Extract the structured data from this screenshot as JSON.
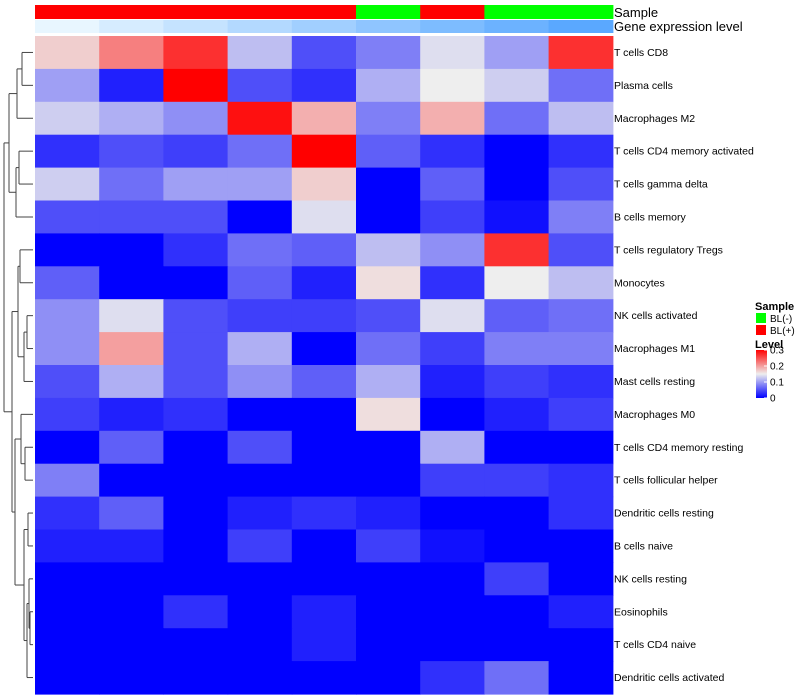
{
  "chart_data": {
    "type": "heatmap",
    "annotations": [
      {
        "name": "Sample",
        "values": [
          "BL(+)",
          "BL(+)",
          "BL(+)",
          "BL(+)",
          "BL(+)",
          "BL(-)",
          "BL(+)",
          "BL(-)",
          "BL(-)"
        ]
      },
      {
        "name": "Gene expression level",
        "values": [
          0.13,
          0.15,
          0.17,
          0.19,
          0.21,
          0.23,
          0.25,
          0.27,
          0.29
        ]
      }
    ],
    "rows": [
      "T cells CD8",
      "Plasma cells",
      "Macrophages M2",
      "T cells CD4 memory activated",
      "T cells gamma delta",
      "B cells memory",
      "T cells regulatory  Tregs",
      "Monocytes",
      "NK cells activated",
      "Macrophages M1",
      "Mast cells resting",
      "Macrophages M0",
      "T cells CD4 memory resting",
      "T cells follicular helper",
      "Dendritic cells resting",
      "B cells naive",
      "NK cells resting",
      "Eosinophils",
      "T cells CD4 naive",
      "Dendritic cells activated"
    ],
    "values": [
      [
        0.17,
        0.22,
        0.27,
        0.12,
        0.05,
        0.08,
        0.14,
        0.1,
        0.27
      ],
      [
        0.1,
        0.02,
        0.3,
        0.05,
        0.03,
        0.11,
        0.15,
        0.13,
        0.07
      ],
      [
        0.13,
        0.11,
        0.09,
        0.29,
        0.19,
        0.08,
        0.19,
        0.07,
        0.12
      ],
      [
        0.03,
        0.05,
        0.04,
        0.07,
        0.3,
        0.06,
        0.03,
        0.0,
        0.03
      ],
      [
        0.13,
        0.07,
        0.1,
        0.1,
        0.17,
        0.0,
        0.06,
        0.0,
        0.05
      ],
      [
        0.05,
        0.05,
        0.05,
        0.0,
        0.14,
        0.0,
        0.04,
        0.01,
        0.08
      ],
      [
        0.0,
        0.0,
        0.03,
        0.07,
        0.06,
        0.12,
        0.09,
        0.27,
        0.05
      ],
      [
        0.06,
        0.0,
        0.0,
        0.06,
        0.02,
        0.16,
        0.03,
        0.15,
        0.12
      ],
      [
        0.09,
        0.14,
        0.05,
        0.04,
        0.04,
        0.05,
        0.14,
        0.06,
        0.07
      ],
      [
        0.09,
        0.2,
        0.05,
        0.11,
        0.0,
        0.07,
        0.04,
        0.08,
        0.08
      ],
      [
        0.05,
        0.11,
        0.05,
        0.09,
        0.06,
        0.11,
        0.02,
        0.04,
        0.03
      ],
      [
        0.04,
        0.02,
        0.03,
        0.0,
        0.0,
        0.16,
        0.0,
        0.02,
        0.04
      ],
      [
        0.0,
        0.06,
        0.0,
        0.05,
        0.0,
        0.0,
        0.11,
        0.0,
        0.0
      ],
      [
        0.08,
        0.0,
        0.0,
        0.0,
        0.0,
        0.0,
        0.04,
        0.04,
        0.03
      ],
      [
        0.03,
        0.06,
        0.0,
        0.02,
        0.03,
        0.02,
        0.0,
        0.0,
        0.03
      ],
      [
        0.02,
        0.02,
        0.0,
        0.04,
        0.0,
        0.04,
        0.01,
        0.0,
        0.0
      ],
      [
        0.0,
        0.0,
        0.0,
        0.0,
        0.0,
        0.0,
        0.0,
        0.04,
        0.0
      ],
      [
        0.0,
        0.0,
        0.03,
        0.0,
        0.02,
        0.0,
        0.0,
        0.0,
        0.02
      ],
      [
        0.0,
        0.0,
        0.0,
        0.0,
        0.02,
        0.0,
        0.0,
        0.0,
        0.0
      ],
      [
        0.0,
        0.0,
        0.0,
        0.0,
        0.0,
        0.0,
        0.03,
        0.07,
        0.0
      ]
    ],
    "color_scale": {
      "min": 0,
      "mid": 0.15,
      "max": 0.3,
      "low_color": "#0000ff",
      "mid_color": "#eeeeee",
      "high_color": "#ff0000"
    },
    "legends": {
      "sample": {
        "title": "Sample",
        "entries": [
          {
            "label": "BL(-)",
            "color": "#00ff00"
          },
          {
            "label": "BL(+)",
            "color": "#ff0000"
          }
        ]
      },
      "level": {
        "title": "Level",
        "ticks": [
          "0.3",
          "0.2",
          "0.1",
          "0"
        ],
        "tick_values": [
          0.3,
          0.2,
          0.1,
          0
        ]
      }
    },
    "annotation_colors": {
      "BL(-)": "#00ff00",
      "BL(+)": "#ff0000",
      "level_low": "#e8f6ff",
      "level_high": "#5aa8ff"
    },
    "row_dendrogram": true,
    "grid": false,
    "legend_position": "right"
  }
}
